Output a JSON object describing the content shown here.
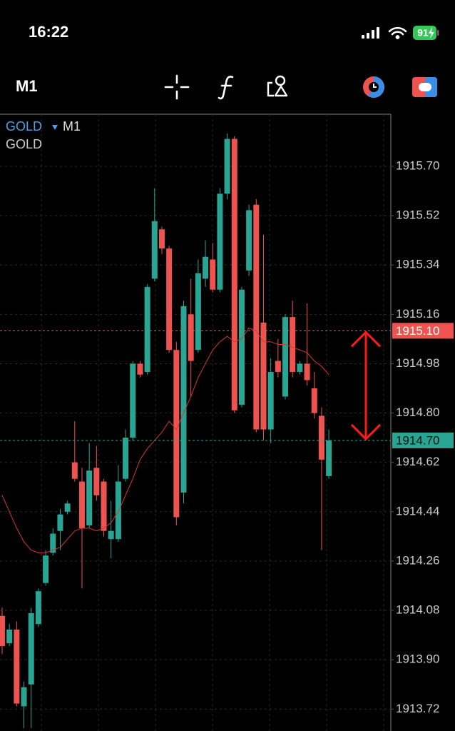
{
  "status_bar": {
    "time": "16:22",
    "battery": "91"
  },
  "toolbar": {
    "timeframe": "M1"
  },
  "chart_data": {
    "type": "candlestick",
    "symbol": "GOLD",
    "timeframe": "M1",
    "indicator_label": "GOLD",
    "up_color": "#2aa593",
    "down_color": "#ef5350",
    "open": [
      1914.06,
      1913.96,
      1914.01,
      1913.73,
      1913.81,
      1914.03,
      1914.18,
      1914.29,
      1914.37,
      1914.44,
      1914.62,
      1914.55,
      1914.39,
      1914.6,
      1914.55,
      1914.34,
      1914.34,
      1914.56,
      1914.71,
      1914.98,
      1914.95,
      1915.29,
      1915.47,
      1915.4,
      1915.03,
      1914.51,
      1915.16,
      1915.03,
      1915.29,
      1915.36,
      1915.25,
      1915.6,
      1915.8,
      1914.83,
      1915.32,
      1915.56,
      1915.13,
      1914.74,
      1914.99,
      1914.86,
      1915.15,
      1914.95,
      1914.98,
      1914.89,
      1914.79,
      1914.57
    ],
    "high": [
      1914.09,
      1914.03,
      1914.04,
      1913.82,
      1914.09,
      1914.16,
      1914.3,
      1914.38,
      1914.45,
      1914.48,
      1914.77,
      1914.6,
      1914.69,
      1914.68,
      1914.56,
      1914.48,
      1914.61,
      1914.74,
      1914.99,
      1914.99,
      1915.27,
      1915.62,
      1915.48,
      1915.41,
      1915.06,
      1915.21,
      1915.29,
      1915.36,
      1915.43,
      1915.42,
      1915.62,
      1915.82,
      1915.81,
      1915.26,
      1915.56,
      1915.58,
      1915.45,
      1915.0,
      1915.07,
      1915.16,
      1915.21,
      1914.99,
      1915.2,
      1914.95,
      1914.82,
      1914.74
    ],
    "low": [
      1913.92,
      1913.95,
      1913.73,
      1913.65,
      1913.65,
      1914.02,
      1914.17,
      1914.28,
      1914.3,
      1914.43,
      1914.55,
      1914.16,
      1914.38,
      1914.48,
      1914.35,
      1914.27,
      1914.33,
      1914.55,
      1914.7,
      1914.93,
      1914.94,
      1915.28,
      1915.38,
      1915.02,
      1914.39,
      1914.47,
      1914.86,
      1915.02,
      1915.26,
      1915.24,
      1915.24,
      1915.58,
      1914.8,
      1914.82,
      1915.3,
      1914.73,
      1914.7,
      1914.69,
      1914.93,
      1914.85,
      1914.93,
      1914.94,
      1914.9,
      1914.78,
      1914.3,
      1914.56
    ],
    "close": [
      1913.95,
      1914.01,
      1913.74,
      1913.8,
      1914.07,
      1914.15,
      1914.28,
      1914.36,
      1914.43,
      1914.47,
      1914.56,
      1914.38,
      1914.59,
      1914.5,
      1914.37,
      1914.37,
      1914.55,
      1914.71,
      1914.98,
      1914.94,
      1915.26,
      1915.5,
      1915.4,
      1915.03,
      1914.42,
      1915.19,
      1914.99,
      1915.31,
      1915.37,
      1915.25,
      1915.6,
      1915.8,
      1914.81,
      1915.25,
      1915.54,
      1914.74,
      1914.74,
      1914.95,
      1914.95,
      1915.15,
      1914.95,
      1914.98,
      1914.92,
      1914.8,
      1914.63,
      1914.7
    ],
    "ma": {
      "color": "#d9352b",
      "values": [
        1914.5,
        1914.44,
        1914.38,
        1914.33,
        1914.3,
        1914.29,
        1914.29,
        1914.3,
        1914.31,
        1914.34,
        1914.37,
        1914.38,
        1914.38,
        1914.37,
        1914.38,
        1914.4,
        1914.44,
        1914.5,
        1914.56,
        1914.63,
        1914.67,
        1914.7,
        1914.73,
        1914.77,
        1914.74,
        1914.8,
        1914.86,
        1914.93,
        1914.98,
        1915.03,
        1915.06,
        1915.08,
        1915.06,
        1915.07,
        1915.11,
        1915.1,
        1915.06,
        1915.06,
        1915.05,
        1915.05,
        1915.04,
        1915.03,
        1915.02,
        1914.99,
        1914.97,
        1914.94
      ]
    },
    "ylim": [
      1913.64,
      1915.89
    ],
    "yticks": [
      {
        "value": 1915.7,
        "label": "1915.70"
      },
      1915.52,
      1915.34,
      1915.16,
      1914.98,
      {
        "value": 1914.8,
        "label": "1914.80"
      },
      1914.62,
      1914.44,
      1914.26,
      1914.08,
      {
        "value": 1913.9,
        "label": "1913.90"
      },
      1913.72
    ],
    "price_lines": [
      {
        "value": 1915.1,
        "label": "1915.10",
        "color": "#ef5350"
      },
      {
        "value": 1914.7,
        "label": "1914.70",
        "color": "#2aa593"
      }
    ],
    "grid": true
  }
}
